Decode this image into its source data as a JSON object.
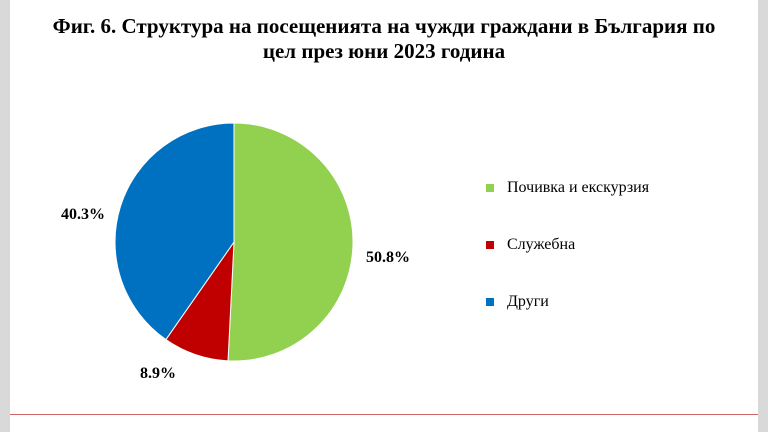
{
  "title_lines": [
    "Фиг. 6. Структура на посещенията на чужди граждани в България по",
    "цел през юни 2023 година"
  ],
  "chart_data": {
    "type": "pie",
    "title": "Фиг. 6. Структура на посещенията на чужди граждани в България по цел през юни 2023 година",
    "slices": [
      {
        "label": "Почивка и екскурзия",
        "value": 50.8,
        "display": "50.8%",
        "color": "#92d050"
      },
      {
        "label": "Служебна",
        "value": 8.9,
        "display": "8.9%",
        "color": "#c00000"
      },
      {
        "label": "Други",
        "value": 40.3,
        "display": "40.3%",
        "color": "#0070c0"
      }
    ],
    "legend_position": "right"
  }
}
